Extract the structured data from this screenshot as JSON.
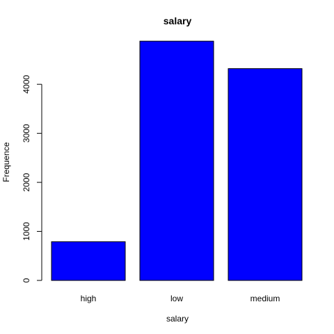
{
  "chart_data": {
    "type": "bar",
    "title": "salary",
    "xlabel": "salary",
    "ylabel": "Frequence",
    "categories": [
      "high",
      "low",
      "medium"
    ],
    "values": [
      790,
      4880,
      4320
    ],
    "yticks": [
      0,
      1000,
      2000,
      3000,
      4000
    ],
    "ylim": [
      0,
      4880
    ],
    "bar_color": "#0000ff",
    "grid": false,
    "legend": "none"
  }
}
